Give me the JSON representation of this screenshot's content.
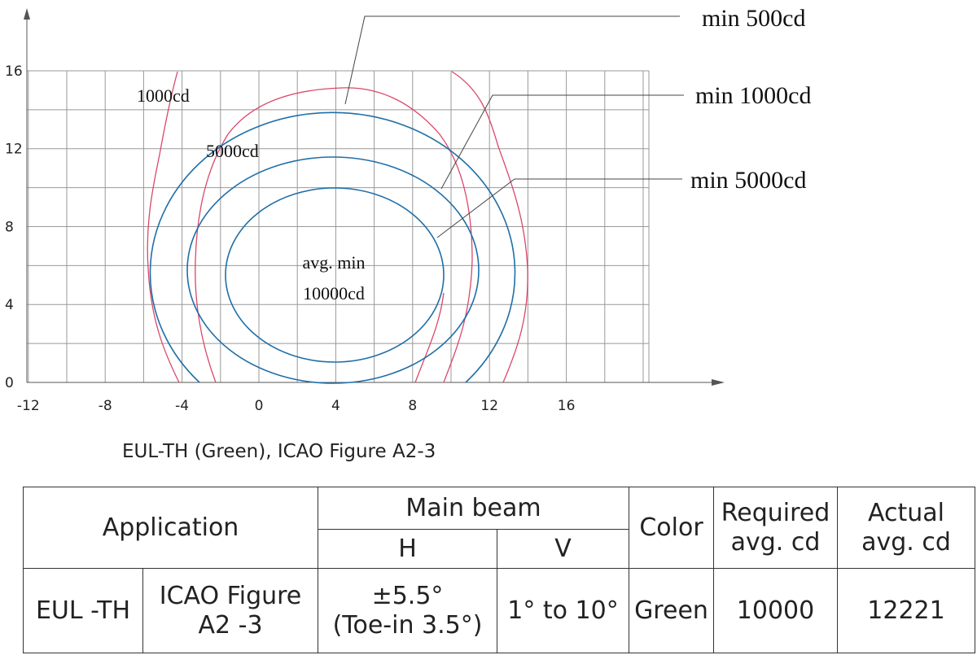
{
  "diagram": {
    "y_axis_labels": [
      0,
      4,
      8,
      12,
      16
    ],
    "x_axis_labels": [
      -12,
      -8,
      -4,
      0,
      4,
      8,
      12,
      16
    ],
    "contour_labels": [
      "1000cd",
      "5000cd"
    ],
    "center_label": [
      "avg. min",
      "10000cd"
    ],
    "annotations": [
      "min 500cd",
      "min 1000cd",
      "min 5000cd"
    ],
    "caption": "EUL-TH (Green), ICAO Figure A2-3"
  },
  "table": {
    "header": [
      "Application",
      "Main beam",
      "Color",
      "Required\navg. cd",
      "Actual\navg. cd"
    ],
    "subheader": [
      "H",
      "V"
    ],
    "rows": [
      [
        "EUL -TH",
        "ICAO Figure\nA2 -3",
        "±5.5°\n(Toe-in 3.5°)",
        "1° to 10°",
        "Green",
        10000,
        12221
      ]
    ]
  }
}
